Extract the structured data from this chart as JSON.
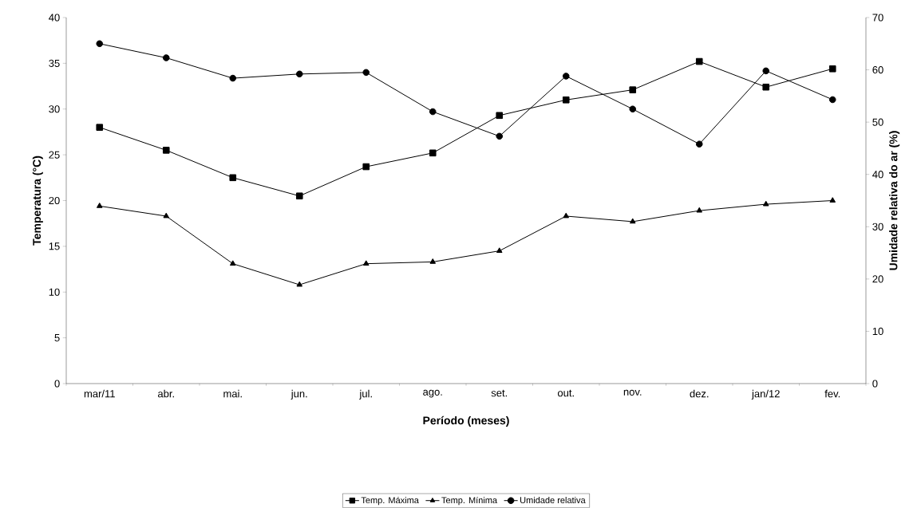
{
  "chart_data": {
    "type": "line",
    "xlabel": "Período (meses)",
    "ylabel": "Temperatura (°C)",
    "y2label": "Umidade relativa do ar (%)",
    "categories": [
      "mar/11",
      "abr.",
      "mai.",
      "jun.",
      "jul.",
      "ago.",
      "set.",
      "out.",
      "nov.",
      "dez.",
      "jan/12",
      "fev."
    ],
    "series": [
      {
        "name": "Temp. Máxima",
        "color": "#000000",
        "marker": "square",
        "values": [
          28.0,
          25.5,
          22.5,
          20.5,
          23.7,
          25.2,
          29.3,
          31.0,
          32.1,
          35.2,
          32.4,
          34.4
        ]
      },
      {
        "name": "Temp. Mínima",
        "color": "#000000",
        "marker": "triangle",
        "values": [
          19.4,
          18.3,
          13.1,
          10.8,
          13.1,
          13.3,
          14.5,
          18.3,
          17.7,
          18.9,
          19.6,
          20.0
        ]
      },
      {
        "name": "Umidade relativa",
        "color": "#000000",
        "marker": "circle",
        "axis": "y2",
        "values": [
          65.0,
          62.3,
          58.4,
          59.2,
          59.5,
          52.0,
          47.3,
          58.8,
          52.5,
          45.8,
          59.8,
          54.3
        ]
      }
    ],
    "ylim": [
      0,
      40
    ],
    "yticks": [
      0,
      5,
      10,
      15,
      20,
      25,
      30,
      35,
      40
    ],
    "y2lim": [
      0,
      70
    ],
    "y2ticks": [
      0,
      10,
      20,
      30,
      40,
      50,
      60,
      70
    ],
    "legend": "bottom",
    "grid": false,
    "line_style": "solid"
  }
}
